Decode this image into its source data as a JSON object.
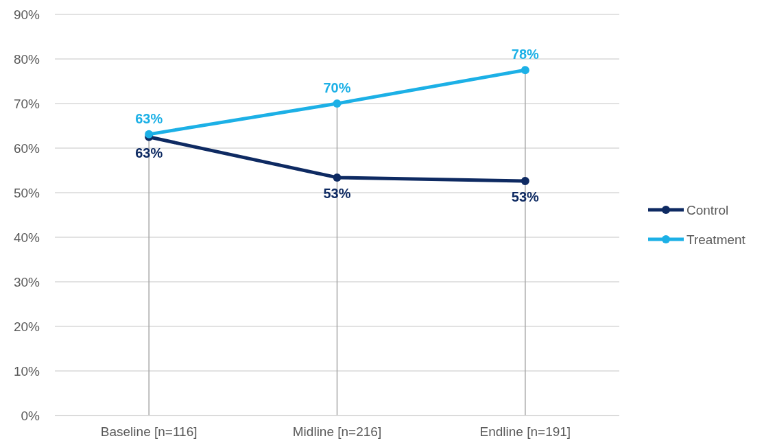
{
  "chart_data": {
    "type": "line",
    "categories": [
      "Baseline [n=116]",
      "Midline [n=216]",
      "Endline [n=191]"
    ],
    "series": [
      {
        "name": "Control",
        "color": "#0e2a62",
        "values": [
          62.5,
          53.4,
          52.6
        ],
        "value_labels": [
          "63%",
          "53%",
          "53%"
        ]
      },
      {
        "name": "Treatment",
        "color": "#1cb0e6",
        "values": [
          63.1,
          70,
          77.5
        ],
        "value_labels": [
          "63%",
          "70%",
          "78%"
        ]
      }
    ],
    "ylim": [
      0,
      90
    ],
    "yticks": [
      {
        "value": 0,
        "label": "0%"
      },
      {
        "value": 10,
        "label": "10%"
      },
      {
        "value": 20,
        "label": "20%"
      },
      {
        "value": 30,
        "label": "30%"
      },
      {
        "value": 40,
        "label": "40%"
      },
      {
        "value": 50,
        "label": "50%"
      },
      {
        "value": 60,
        "label": "60%"
      },
      {
        "value": 70,
        "label": "70%"
      },
      {
        "value": 80,
        "label": "80%"
      },
      {
        "value": 90,
        "label": "90%"
      }
    ],
    "grid": true,
    "legend": "right",
    "marker": "circle",
    "line_style": "solid"
  }
}
